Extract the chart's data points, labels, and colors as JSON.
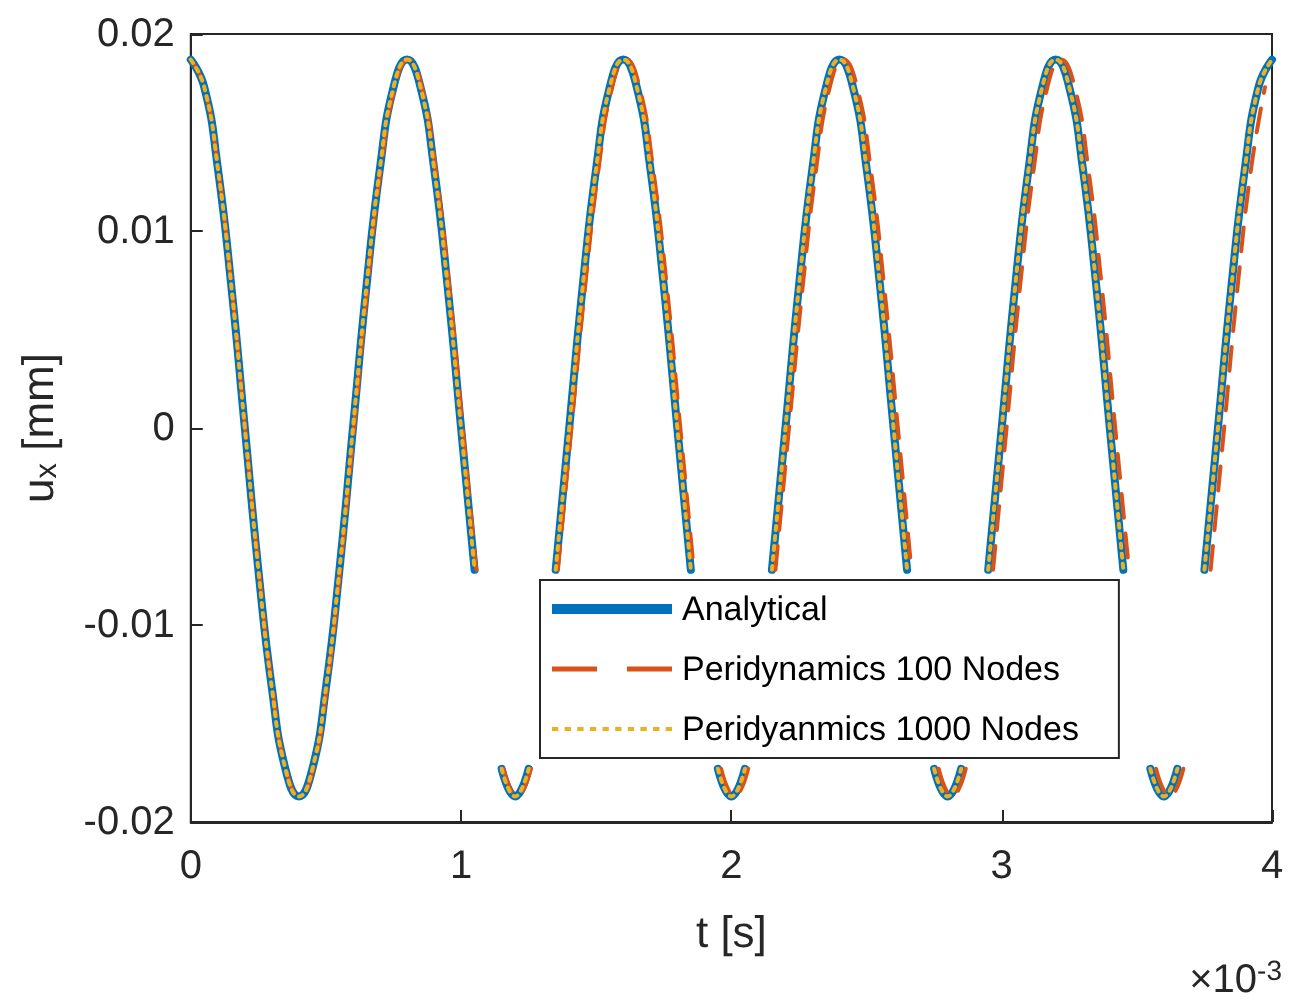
{
  "chart_data": {
    "type": "line",
    "xlabel": "t [s]",
    "ylabel": "u$_{x}$ [mm]",
    "annotations": [
      "×10$^{-3}$"
    ],
    "xlim": [
      0,
      4
    ],
    "xticks": [
      0,
      1,
      2,
      3,
      4
    ],
    "ylim": [
      -0.02,
      0.02
    ],
    "yticks": [
      -0.02,
      -0.01,
      0,
      0.01,
      0.02
    ],
    "grid": false,
    "legend": "bottom right",
    "marker": "none",
    "x": [
      0,
      0.05,
      0.1,
      0.15,
      0.2,
      0.25,
      0.3,
      0.35,
      0.4,
      0.45,
      0.5,
      0.55,
      0.6,
      0.65,
      0.7,
      0.75,
      0.8,
      0.85,
      0.9,
      0.95,
      1,
      1.05,
      1.1,
      1.15,
      1.2,
      1.25,
      1.3,
      1.35,
      1.4,
      1.45,
      1.5,
      1.55,
      1.6,
      1.65,
      1.7,
      1.75,
      1.8,
      1.85,
      1.9,
      1.95,
      2,
      2.05,
      2.1,
      2.15,
      2.2,
      2.25,
      2.3,
      2.35,
      2.4,
      2.45,
      2.5,
      2.55,
      2.6,
      2.65,
      2.7,
      2.75,
      2.8,
      2.85,
      2.9,
      2.95,
      3,
      3.05,
      3.1,
      3.15,
      3.2,
      3.25,
      3.3,
      3.35,
      3.4,
      3.45,
      3.5,
      3.55,
      3.6,
      3.65,
      3.7,
      3.75,
      3.8,
      3.85,
      3.9,
      3.95,
      4
    ],
    "series": [
      {
        "name": "Analytical",
        "color": "#0072bd",
        "line_style": "solid",
        "values": [
          0.0187,
          0.0173,
          0.0132,
          0.0072,
          0,
          -0.0072,
          -0.0132,
          -0.0173,
          -0.0187,
          -0.0173,
          -0.0132,
          -0.0072,
          0,
          0.0072,
          0.0132,
          0.0173,
          0.0187,
          0.0173,
          0.0132,
          0.0072,
          0,
          -0.0072,
          null,
          -0.0173,
          -0.0187,
          -0.0173,
          null,
          -0.0072,
          0,
          0.0072,
          0.0132,
          0.0173,
          0.0187,
          0.0173,
          0.0132,
          0.0072,
          0,
          -0.0072,
          null,
          -0.0173,
          -0.0187,
          -0.0173,
          null,
          -0.0072,
          0,
          0.0072,
          0.0132,
          0.0173,
          0.0187,
          0.0173,
          0.0132,
          0.0072,
          0,
          -0.0072,
          null,
          -0.0173,
          -0.0187,
          -0.0173,
          null,
          -0.0072,
          0,
          0.0072,
          0.0132,
          0.0173,
          0.0187,
          0.0173,
          0.0132,
          0.0072,
          0,
          -0.0072,
          null,
          -0.0173,
          -0.0187,
          -0.0173,
          null,
          -0.0072,
          0,
          0.0072,
          0.0132,
          0.0173,
          0.0187
        ]
      },
      {
        "name": "Peridynamics 100 Nodes",
        "color": "#d95319",
        "line_style": "dashed",
        "x": [
          0,
          0.05,
          0.101,
          0.151,
          0.201,
          0.252,
          0.302,
          0.352,
          0.402,
          0.453,
          0.503,
          0.553,
          0.604,
          0.654,
          0.704,
          0.755,
          0.805,
          0.855,
          0.905,
          0.956,
          1.006,
          1.056,
          1.107,
          1.157,
          1.207,
          1.258,
          1.308,
          1.358,
          1.408,
          1.459,
          1.509,
          1.559,
          1.61,
          1.66,
          1.71,
          1.761,
          1.811,
          1.861,
          1.911,
          1.962,
          2.012,
          2.062,
          2.113,
          2.163,
          2.213,
          2.264,
          2.314,
          2.364,
          2.414,
          2.465,
          2.515,
          2.565,
          2.616,
          2.666,
          2.716,
          2.767,
          2.817,
          2.867,
          2.917,
          2.968,
          3.018,
          3.068,
          3.119,
          3.169,
          3.219,
          3.27,
          3.32,
          3.37,
          3.42,
          3.471,
          3.521,
          3.571,
          3.622,
          3.672,
          3.722,
          3.773,
          3.823,
          3.873,
          3.923,
          3.974
        ],
        "values": [
          0.0187,
          0.0173,
          0.0132,
          0.0072,
          0,
          -0.0072,
          -0.0132,
          -0.0173,
          -0.0187,
          -0.0173,
          -0.0132,
          -0.0072,
          0,
          0.0072,
          0.0132,
          0.0173,
          0.0187,
          0.0173,
          0.0132,
          0.0072,
          0,
          -0.0072,
          null,
          -0.0173,
          -0.0187,
          -0.0173,
          null,
          -0.0072,
          0,
          0.0072,
          0.0132,
          0.0173,
          0.0187,
          0.0173,
          0.0132,
          0.0072,
          0,
          -0.0072,
          null,
          -0.0173,
          -0.0187,
          -0.0173,
          null,
          -0.0072,
          0,
          0.0072,
          0.0132,
          0.0173,
          0.0187,
          0.0173,
          0.0132,
          0.0072,
          0,
          -0.0072,
          null,
          -0.0173,
          -0.0187,
          -0.0173,
          null,
          -0.0072,
          0,
          0.0072,
          0.0132,
          0.0173,
          0.0187,
          0.0173,
          0.0132,
          0.0072,
          0,
          -0.0072,
          null,
          -0.0173,
          -0.0187,
          -0.0173,
          null,
          -0.0072,
          0,
          0.0072,
          0.0132,
          0.0173
        ]
      },
      {
        "name": "Peridyanmics 1000 Nodes",
        "color": "#edb120",
        "line_style": "dotted",
        "values": [
          0.0187,
          0.0173,
          0.0132,
          0.0072,
          0,
          -0.0072,
          -0.0132,
          -0.0173,
          -0.0187,
          -0.0173,
          -0.0132,
          -0.0072,
          0,
          0.0072,
          0.0132,
          0.0173,
          0.0187,
          0.0173,
          0.0132,
          0.0072,
          0,
          -0.0072,
          null,
          -0.0173,
          -0.0187,
          -0.0173,
          null,
          -0.0072,
          0,
          0.0072,
          0.0132,
          0.0173,
          0.0187,
          0.0173,
          0.0132,
          0.0072,
          0,
          -0.0072,
          null,
          -0.0173,
          -0.0187,
          -0.0173,
          null,
          -0.0072,
          0,
          0.0072,
          0.0132,
          0.0173,
          0.0187,
          0.0173,
          0.0132,
          0.0072,
          0,
          -0.0072,
          null,
          -0.0173,
          -0.0187,
          -0.0173,
          null,
          -0.0072,
          0,
          0.0072,
          0.0132,
          0.0173,
          0.0187,
          0.0173,
          0.0132,
          0.0072,
          0,
          -0.0072,
          null,
          -0.0173,
          -0.0187,
          -0.0173,
          null,
          -0.0072,
          0,
          0.0072,
          0.0132,
          0.0173,
          0.0187
        ]
      }
    ]
  }
}
